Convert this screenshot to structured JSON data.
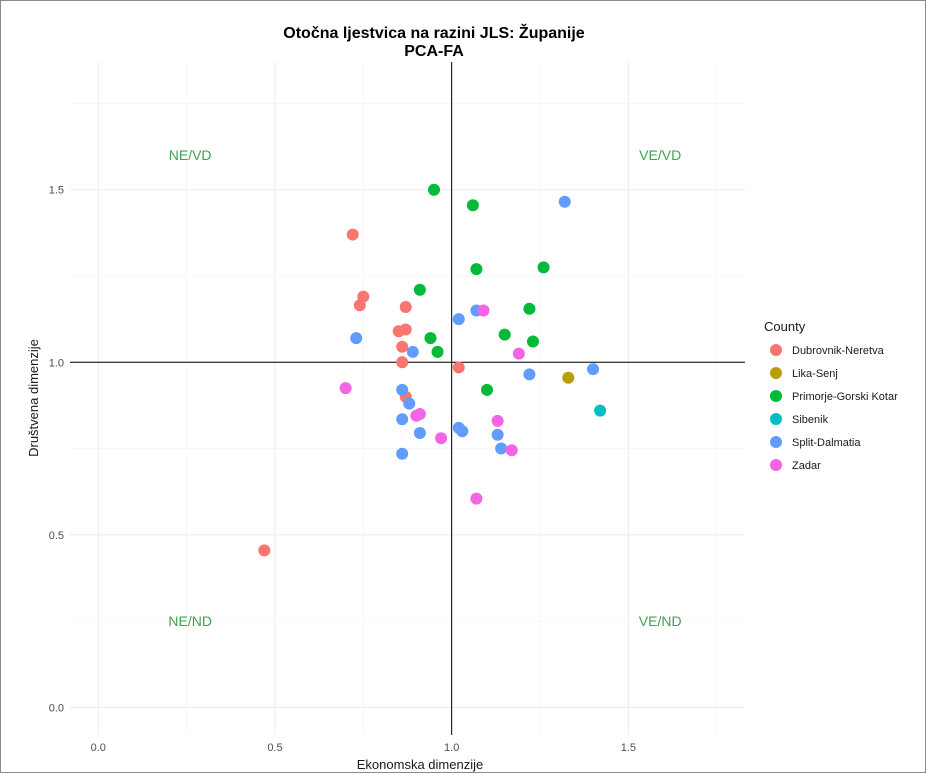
{
  "chart_data": {
    "type": "scatter",
    "title": "Otočna ljestvica na razini JLS: Županije",
    "subtitle": "PCA-FA",
    "xlabel": "Ekonomska dimenzije",
    "ylabel": "Društvena dimenzije",
    "xlim": [
      -0.08,
      1.83
    ],
    "ylim": [
      -0.08,
      1.87
    ],
    "xticks": [
      0.0,
      0.5,
      1.0,
      1.5
    ],
    "xtick_labels": [
      "0.0",
      "0.5",
      "1.0",
      "1.5"
    ],
    "yticks": [
      0.0,
      0.5,
      1.0,
      1.5
    ],
    "ytick_labels": [
      "0.0",
      "0.5",
      "1.0",
      "1.5"
    ],
    "grid": true,
    "reference_lines": {
      "x": 1.0,
      "y": 1.0
    },
    "quadrant_labels": [
      {
        "text": "NE/VD",
        "x": 0.26,
        "y": 1.6
      },
      {
        "text": "VE/VD",
        "x": 1.59,
        "y": 1.6
      },
      {
        "text": "NE/ND",
        "x": 0.26,
        "y": 0.25
      },
      {
        "text": "VE/ND",
        "x": 1.59,
        "y": 0.25
      }
    ],
    "legend_title": "County",
    "legend_position": "right",
    "series": [
      {
        "name": "Dubrovnik-Neretva",
        "color": "#F8766D",
        "points": [
          [
            0.72,
            1.37
          ],
          [
            0.74,
            1.165
          ],
          [
            0.75,
            1.19
          ],
          [
            0.87,
            1.16
          ],
          [
            0.85,
            1.09
          ],
          [
            0.87,
            1.095
          ],
          [
            0.86,
            1.045
          ],
          [
            0.86,
            1.0
          ],
          [
            0.87,
            0.9
          ],
          [
            1.02,
            0.985
          ],
          [
            0.47,
            0.455
          ]
        ]
      },
      {
        "name": "Lika-Senj",
        "color": "#B79F00",
        "points": [
          [
            1.33,
            0.955
          ]
        ]
      },
      {
        "name": "Primorje-Gorski Kotar",
        "color": "#00BA38",
        "points": [
          [
            0.95,
            1.5
          ],
          [
            1.06,
            1.455
          ],
          [
            1.07,
            1.27
          ],
          [
            1.26,
            1.275
          ],
          [
            0.91,
            1.21
          ],
          [
            1.22,
            1.155
          ],
          [
            1.15,
            1.08
          ],
          [
            0.94,
            1.07
          ],
          [
            1.23,
            1.06
          ],
          [
            0.96,
            1.03
          ],
          [
            1.1,
            0.92
          ]
        ]
      },
      {
        "name": "Sibenik",
        "color": "#00BFC4",
        "points": [
          [
            1.42,
            0.86
          ]
        ]
      },
      {
        "name": "Split-Dalmatia",
        "color": "#619CFF",
        "points": [
          [
            1.32,
            1.465
          ],
          [
            0.73,
            1.07
          ],
          [
            1.07,
            1.15
          ],
          [
            1.02,
            1.125
          ],
          [
            0.89,
            1.03
          ],
          [
            1.4,
            0.98
          ],
          [
            1.22,
            0.965
          ],
          [
            0.86,
            0.92
          ],
          [
            0.88,
            0.88
          ],
          [
            0.86,
            0.835
          ],
          [
            1.02,
            0.81
          ],
          [
            1.03,
            0.8
          ],
          [
            0.91,
            0.795
          ],
          [
            1.13,
            0.79
          ],
          [
            1.14,
            0.75
          ],
          [
            0.86,
            0.735
          ]
        ]
      },
      {
        "name": "Zadar",
        "color": "#F564E3",
        "points": [
          [
            1.09,
            1.15
          ],
          [
            1.19,
            1.025
          ],
          [
            0.7,
            0.925
          ],
          [
            0.91,
            0.85
          ],
          [
            0.9,
            0.845
          ],
          [
            1.13,
            0.83
          ],
          [
            0.97,
            0.78
          ],
          [
            1.17,
            0.745
          ],
          [
            1.07,
            0.605
          ]
        ]
      }
    ]
  }
}
